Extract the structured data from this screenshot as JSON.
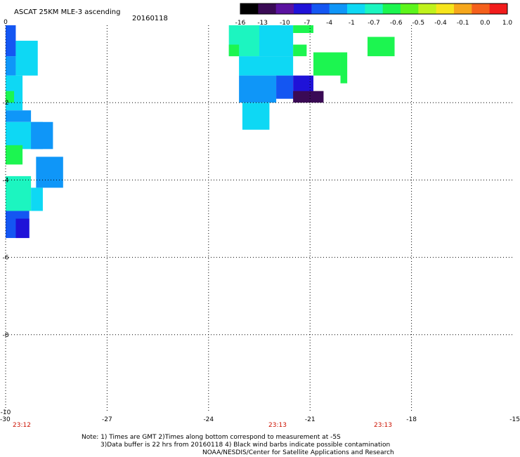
{
  "header": {
    "title": "ASCAT 25KM MLE-3 ascending",
    "date": "20160118"
  },
  "colorbar": {
    "labels": [
      "-16",
      "-13",
      "-10",
      "-7",
      "-4",
      "-1",
      "-0.7",
      "-0.6",
      "-0.5",
      "-0.4",
      "-0.1",
      "0.0",
      "1.0"
    ],
    "colors": [
      "#000000",
      "#3a0a55",
      "#5a12a0",
      "#1f12d8",
      "#1456f2",
      "#0f96f8",
      "#0ed8f4",
      "#1cf5c0",
      "#1cf550",
      "#5cf51c",
      "#c0f21c",
      "#f6e51c",
      "#f6a71c",
      "#f5601c",
      "#f21c1c"
    ]
  },
  "times": [
    "23:12",
    "23:13",
    "23:13"
  ],
  "notes": {
    "line1": "Note: 1) Times are GMT 2)Times along bottom correspond to measurement at -5S",
    "line2": "3)Data buffer is 22 hrs from 20160118 4) Black wind barbs indicate possible contamination",
    "line3": "NOAA/NESDIS/Center for Satellite Applications and Research"
  },
  "chart_data": {
    "type": "heatmap",
    "title": "ASCAT 25KM MLE-3 ascending",
    "xlabel": "",
    "ylabel": "",
    "xlim": [
      -30,
      -15
    ],
    "ylim": [
      -10,
      0
    ],
    "xticks": [
      "-30",
      "-27",
      "-24",
      "-21",
      "-18",
      "-15"
    ],
    "yticks": [
      "0",
      "-2",
      "-4",
      "-6",
      "-8",
      "-10"
    ],
    "grid": true,
    "color_scale": [
      "-16",
      "-13",
      "-10",
      "-7",
      "-4",
      "-1",
      "-0.7",
      "-0.6",
      "-0.5",
      "-0.4",
      "-0.1",
      "0.0",
      "1.0"
    ],
    "cells": [
      {
        "x": [
          -30,
          -29.7
        ],
        "y": [
          0.3,
          -0.8
        ],
        "color": "#1456f2"
      },
      {
        "x": [
          -29.7,
          -29.05
        ],
        "y": [
          -0.4,
          -1.3
        ],
        "color": "#0ed8f4"
      },
      {
        "x": [
          -30,
          -29.7
        ],
        "y": [
          -0.8,
          -1.3
        ],
        "color": "#0f96f8"
      },
      {
        "x": [
          -30,
          -29.5
        ],
        "y": [
          -1.3,
          -2.2
        ],
        "color": "#0ed8f4"
      },
      {
        "x": [
          -30,
          -29.75
        ],
        "y": [
          -1.7,
          -2.0
        ],
        "color": "#1cf550"
      },
      {
        "x": [
          -30,
          -29.25
        ],
        "y": [
          -2.2,
          -2.5
        ],
        "color": "#0f96f8"
      },
      {
        "x": [
          -30,
          -28.9
        ],
        "y": [
          -2.5,
          -3.2
        ],
        "color": "#0ed8f4"
      },
      {
        "x": [
          -29.25,
          -28.6
        ],
        "y": [
          -2.5,
          -3.2
        ],
        "color": "#0f96f8"
      },
      {
        "x": [
          -30,
          -29.5
        ],
        "y": [
          -3.1,
          -3.6
        ],
        "color": "#1cf550"
      },
      {
        "x": [
          -29.1,
          -28.3
        ],
        "y": [
          -3.4,
          -4.2
        ],
        "color": "#0f96f8"
      },
      {
        "x": [
          -30,
          -29.25
        ],
        "y": [
          -3.9,
          -4.8
        ],
        "color": "#1cf5c0"
      },
      {
        "x": [
          -29.25,
          -28.9
        ],
        "y": [
          -4.2,
          -4.8
        ],
        "color": "#0ed8f4"
      },
      {
        "x": [
          -30,
          -29.3
        ],
        "y": [
          -4.8,
          -5.5
        ],
        "color": "#1456f2"
      },
      {
        "x": [
          -29.7,
          -29.3
        ],
        "y": [
          -5.0,
          -5.5
        ],
        "color": "#1f12d8"
      },
      {
        "x": [
          -23.4,
          -22.5
        ],
        "y": [
          0.0,
          -0.8
        ],
        "color": "#1cf5c0"
      },
      {
        "x": [
          -22.5,
          -21.5
        ],
        "y": [
          0.0,
          -0.8
        ],
        "color": "#0ed8f4"
      },
      {
        "x": [
          -21.5,
          -20.9
        ],
        "y": [
          0.0,
          -0.2
        ],
        "color": "#1cf550"
      },
      {
        "x": [
          -23.4,
          -23.1
        ],
        "y": [
          -0.5,
          -0.8
        ],
        "color": "#1cf550"
      },
      {
        "x": [
          -21.5,
          -21.1
        ],
        "y": [
          -0.5,
          -0.8
        ],
        "color": "#1cf550"
      },
      {
        "x": [
          -20.9,
          -20.1
        ],
        "y": [
          -0.7,
          -1.3
        ],
        "color": "#1cf550"
      },
      {
        "x": [
          -20.1,
          -19.9
        ],
        "y": [
          -0.7,
          -1.5
        ],
        "color": "#1cf550"
      },
      {
        "x": [
          -19.3,
          -18.5
        ],
        "y": [
          -0.3,
          -0.8
        ],
        "color": "#1cf550"
      },
      {
        "x": [
          -23.1,
          -21.5
        ],
        "y": [
          -0.8,
          -1.3
        ],
        "color": "#0ed8f4"
      },
      {
        "x": [
          -23.1,
          -22.0
        ],
        "y": [
          -1.3,
          -2.0
        ],
        "color": "#0f96f8"
      },
      {
        "x": [
          -22.0,
          -21.5
        ],
        "y": [
          -1.3,
          -1.9
        ],
        "color": "#1456f2"
      },
      {
        "x": [
          -21.5,
          -20.9
        ],
        "y": [
          -1.3,
          -1.9
        ],
        "color": "#1f12d8"
      },
      {
        "x": [
          -21.5,
          -20.6
        ],
        "y": [
          -1.7,
          -2.0
        ],
        "color": "#3a0a55"
      },
      {
        "x": [
          -23.0,
          -22.2
        ],
        "y": [
          -2.0,
          -2.7
        ],
        "color": "#0ed8f4"
      }
    ]
  }
}
